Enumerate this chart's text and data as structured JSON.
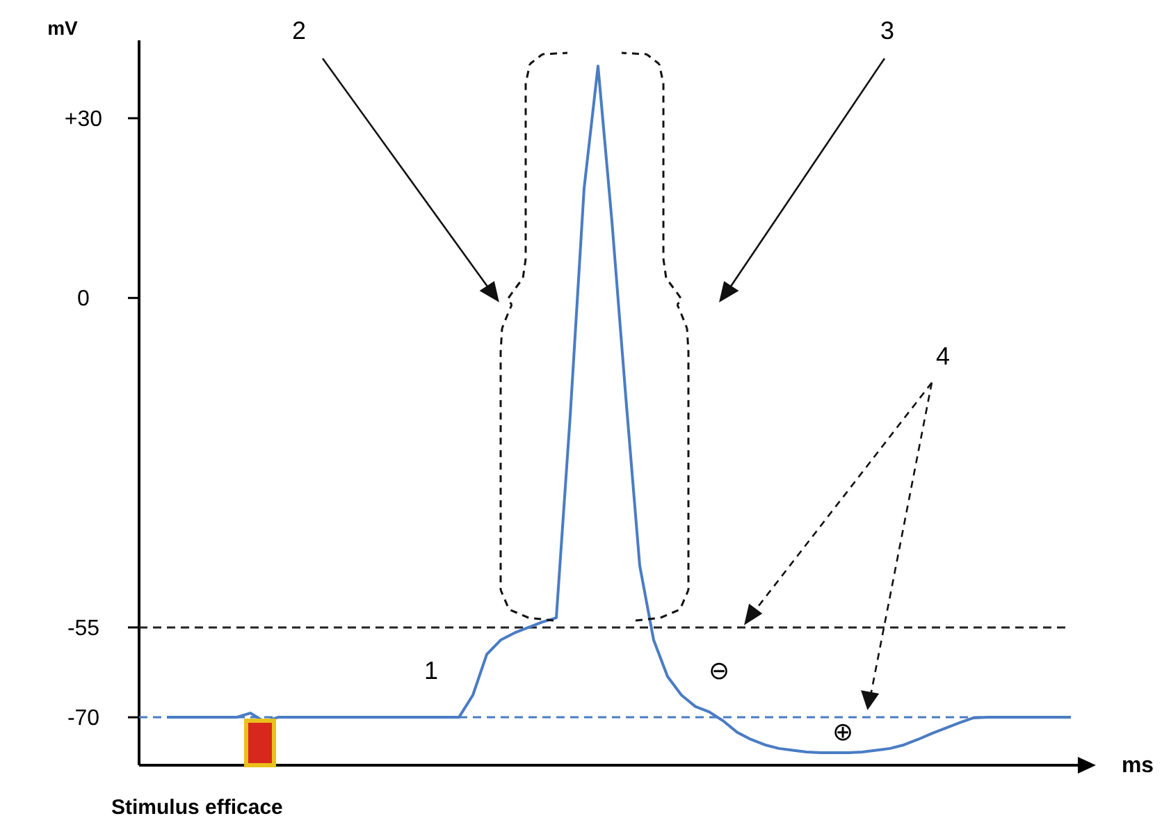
{
  "chart_data": {
    "type": "line",
    "ylabel": "mV",
    "xlabel": "ms",
    "categories": [
      null,
      null,
      null,
      null,
      null,
      null,
      null,
      null,
      null,
      null,
      null,
      null,
      null,
      null,
      null,
      null,
      null,
      null,
      null,
      null,
      null,
      null,
      null,
      null,
      null,
      null,
      null,
      null,
      null,
      null,
      null,
      null,
      null,
      null,
      null,
      null,
      null,
      null,
      null,
      null,
      null,
      null,
      null,
      null,
      null,
      null,
      null,
      null,
      null,
      null,
      null,
      null,
      null,
      null,
      null,
      null,
      null,
      null,
      null,
      null,
      null,
      null,
      null,
      null,
      null,
      null,
      null,
      null
    ],
    "series": [
      {
        "color": "#4a7cc4",
        "values": [
          null,
          null,
          -70,
          -70,
          -70,
          -70,
          -70,
          -70,
          -69.3,
          -70.7,
          -70,
          -70,
          -70,
          -70,
          -70,
          -70,
          -70,
          -70,
          -70,
          -70,
          -70,
          -70,
          -70,
          -70,
          -66.3,
          -59.5,
          -57.1,
          -55.9,
          -55,
          -54.1,
          -53.4,
          -19.7,
          18.3,
          38.7,
          12.8,
          -16.6,
          -44.7,
          -57.1,
          -63.2,
          -66.3,
          -68.2,
          -69.1,
          -70.6,
          -72.5,
          -73.7,
          -74.6,
          -75.2,
          -75.5,
          -75.8,
          -75.9,
          -75.9,
          -75.9,
          -75.8,
          -75.5,
          -75.2,
          -74.6,
          -73.7,
          -72.7,
          -71.8,
          -70.9,
          -70.1,
          -70,
          -70,
          -70,
          -70,
          -70,
          -70,
          -70
        ]
      }
    ],
    "ylim": [
      -78,
      43
    ],
    "yticks": [
      -70,
      -55,
      0,
      {
        "value": 30,
        "label": "+30"
      }
    ],
    "ref_lines": [
      {
        "axis": "y",
        "value": -55,
        "color": "#222222",
        "line_style": "dashed"
      },
      {
        "axis": "y",
        "value": -70,
        "color": "#4a7cc4",
        "line_style": "dashed"
      }
    ],
    "annotations": [
      "1",
      "2",
      "3",
      "4",
      "⊖",
      "⊕",
      "Stimulus efficace"
    ]
  }
}
